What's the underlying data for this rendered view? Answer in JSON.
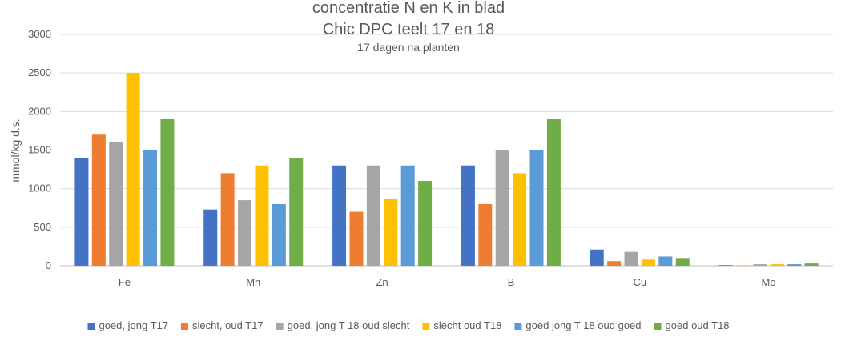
{
  "chart_data": {
    "type": "bar",
    "title": [
      "concentratie N en K in blad",
      "Chic DPC teelt 17 en 18"
    ],
    "subtitle": "17 dagen na planten",
    "ylabel": "mmol/kg d.s.",
    "xlabel": "",
    "ylim": [
      0,
      3000
    ],
    "yticks": [
      0,
      500,
      1000,
      1500,
      2000,
      2500,
      3000
    ],
    "grid": true,
    "legend_position": "bottom",
    "categories": [
      "Fe",
      "Mn",
      "Zn",
      "B",
      "Cu",
      "Mo"
    ],
    "series": [
      {
        "name": "goed, jong T17",
        "color": "#4472c4",
        "values": [
          1400,
          730,
          1300,
          1300,
          210,
          8
        ]
      },
      {
        "name": "slecht, oud T17",
        "color": "#ed7d31",
        "values": [
          1700,
          1200,
          700,
          800,
          60,
          3
        ]
      },
      {
        "name": "goed, jong T 18 oud slecht",
        "color": "#a5a5a5",
        "values": [
          1600,
          850,
          1300,
          1500,
          180,
          20
        ]
      },
      {
        "name": "slecht oud T18",
        "color": "#ffc000",
        "values": [
          2500,
          1300,
          870,
          1200,
          80,
          20
        ]
      },
      {
        "name": "goed jong T 18 oud goed",
        "color": "#5b9bd5",
        "values": [
          1500,
          800,
          1300,
          1500,
          120,
          20
        ]
      },
      {
        "name": "goed oud T18",
        "color": "#70ad47",
        "values": [
          1900,
          1400,
          1100,
          1900,
          100,
          30
        ]
      }
    ]
  }
}
